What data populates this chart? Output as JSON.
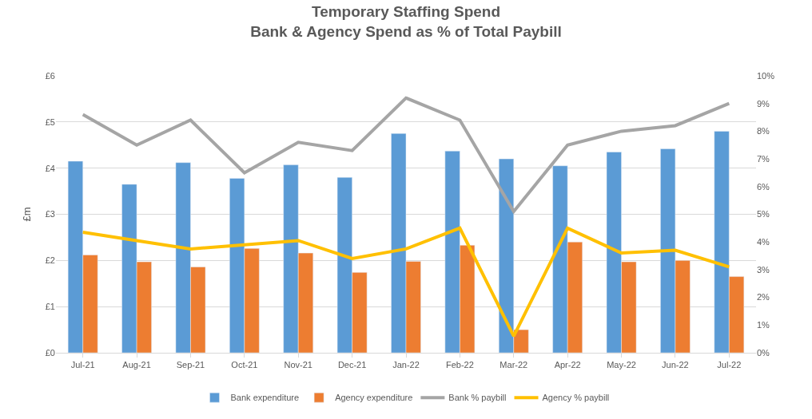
{
  "chart_data": {
    "type": "bar",
    "title": "Temporary Staffing Spend\nBank & Agency Spend as % of Total Paybill",
    "ylabel": "£m",
    "categories": [
      "Jul-21",
      "Aug-21",
      "Sep-21",
      "Oct-21",
      "Nov-21",
      "Dec-21",
      "Jan-22",
      "Feb-22",
      "Mar-22",
      "Apr-22",
      "May-22",
      "Jun-22",
      "Jul-22"
    ],
    "series": [
      {
        "name": "Bank expenditure",
        "color": "#5b9bd5",
        "values": [
          4.15,
          3.65,
          4.12,
          3.78,
          4.07,
          3.8,
          4.75,
          4.37,
          4.2,
          4.05,
          4.35,
          4.42,
          4.8
        ]
      },
      {
        "name": "Agency expenditure",
        "color": "#ed7d31",
        "values": [
          2.12,
          1.97,
          1.86,
          2.26,
          2.16,
          1.74,
          1.98,
          2.33,
          0.5,
          2.4,
          1.97,
          2.0,
          1.65
        ]
      },
      {
        "name": "Bank % paybill",
        "type": "line",
        "axis": "y2",
        "color": "#a5a5a5",
        "values": [
          8.6,
          7.5,
          8.4,
          6.5,
          7.6,
          7.3,
          9.2,
          8.4,
          5.1,
          7.5,
          8.0,
          8.2,
          9.0
        ]
      },
      {
        "name": "Agency % paybill",
        "type": "line",
        "axis": "y2",
        "color": "#ffc000",
        "values": [
          4.35,
          4.05,
          3.75,
          3.9,
          4.05,
          3.4,
          3.75,
          4.5,
          0.6,
          4.5,
          3.6,
          3.7,
          3.1
        ]
      }
    ],
    "ylim": [
      0,
      6
    ],
    "yticks": [
      {
        "value": 0,
        "label": "£0"
      },
      {
        "value": 1,
        "label": "£1"
      },
      {
        "value": 2,
        "label": "£2"
      },
      {
        "value": 3,
        "label": "£3"
      },
      {
        "value": 4,
        "label": "£4"
      },
      {
        "value": 5,
        "label": "£5"
      },
      {
        "value": 6,
        "label": "£6"
      }
    ],
    "y2lim": [
      0,
      10
    ],
    "y2ticks": [
      {
        "value": 0,
        "label": "0%"
      },
      {
        "value": 1,
        "label": "1%"
      },
      {
        "value": 2,
        "label": "2%"
      },
      {
        "value": 3,
        "label": "3%"
      },
      {
        "value": 4,
        "label": "4%"
      },
      {
        "value": 5,
        "label": "5%"
      },
      {
        "value": 6,
        "label": "6%"
      },
      {
        "value": 7,
        "label": "7%"
      },
      {
        "value": 8,
        "label": "8%"
      },
      {
        "value": 9,
        "label": "9%"
      },
      {
        "value": 10,
        "label": "10%"
      }
    ],
    "grid": "y",
    "legend": "bottom",
    "marker": "none",
    "line_style": "solid"
  }
}
